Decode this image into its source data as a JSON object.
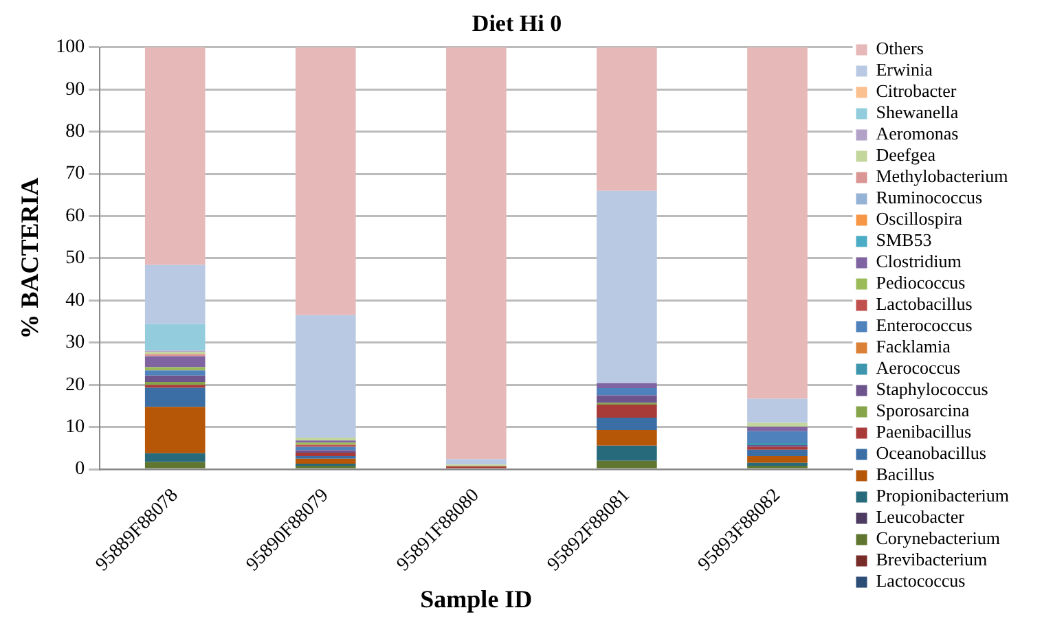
{
  "chart_data": {
    "type": "bar",
    "title": "Diet Hi 0",
    "xlabel": "Sample ID",
    "ylabel": "% BACTERIA",
    "categories": [
      "95889F88078",
      "95890F88079",
      "95891F88080",
      "95892F88081",
      "95893F88082"
    ],
    "stacked": true,
    "ylim": [
      0,
      100
    ],
    "yticks": [
      0,
      10,
      20,
      30,
      40,
      50,
      60,
      70,
      80,
      90,
      100
    ],
    "grid": "y",
    "legend": "right",
    "series": [
      {
        "name": "Lactococcus",
        "color": "#2c4d75",
        "values": [
          0,
          0,
          0,
          0,
          0
        ]
      },
      {
        "name": "Brevibacterium",
        "color": "#772c2a",
        "values": [
          0,
          0,
          0.3,
          0,
          0
        ]
      },
      {
        "name": "Corynebacterium",
        "color": "#5f7530",
        "values": [
          1.7,
          0.8,
          0,
          2,
          0.8
        ]
      },
      {
        "name": "Leucobacter",
        "color": "#4d3b62",
        "values": [
          0,
          0,
          0,
          0,
          0
        ]
      },
      {
        "name": "Propionibacterium",
        "color": "#276a7c",
        "values": [
          2.1,
          0.5,
          0,
          3.6,
          0.7
        ]
      },
      {
        "name": "Bacillus",
        "color": "#b65708",
        "values": [
          11,
          1.2,
          0,
          3.7,
          1.6
        ]
      },
      {
        "name": "Oceanobacillus",
        "color": "#3a6ea5",
        "values": [
          4.5,
          0.6,
          0,
          2.9,
          1.5
        ]
      },
      {
        "name": "Paenibacillus",
        "color": "#a83a37",
        "values": [
          0.7,
          0.8,
          0.4,
          3.1,
          0.7
        ]
      },
      {
        "name": "Sporosarcina",
        "color": "#86a44a",
        "values": [
          0.7,
          0,
          0,
          0.4,
          0
        ]
      },
      {
        "name": "Staphylococcus",
        "color": "#6e548d",
        "values": [
          1.5,
          0.6,
          0,
          1.8,
          0.4
        ]
      },
      {
        "name": "Aerococcus",
        "color": "#3d96ae",
        "values": [
          0,
          0,
          0,
          0,
          0.5
        ]
      },
      {
        "name": "Facklamia",
        "color": "#da8137",
        "values": [
          0,
          0,
          0,
          0,
          0
        ]
      },
      {
        "name": "Enterococcus",
        "color": "#4f81bd",
        "values": [
          1.2,
          0.8,
          0,
          1.7,
          2.8
        ]
      },
      {
        "name": "Lactobacillus",
        "color": "#c0504d",
        "values": [
          0,
          0.5,
          0,
          0,
          0
        ]
      },
      {
        "name": "Pediococcus",
        "color": "#9bbb59",
        "values": [
          0.8,
          0.5,
          0,
          0,
          0
        ]
      },
      {
        "name": "Clostridium",
        "color": "#8064a2",
        "values": [
          2.6,
          0.5,
          0,
          1.2,
          1.1
        ]
      },
      {
        "name": "SMB53",
        "color": "#4bacc6",
        "values": [
          0,
          0,
          0,
          0,
          0
        ]
      },
      {
        "name": "Oscillospira",
        "color": "#f79646",
        "values": [
          0,
          0,
          0,
          0,
          0
        ]
      },
      {
        "name": "Ruminococcus",
        "color": "#95b3d7",
        "values": [
          0,
          0,
          0,
          0,
          0
        ]
      },
      {
        "name": "Methylobacterium",
        "color": "#d99694",
        "values": [
          0.5,
          0,
          0,
          0,
          0
        ]
      },
      {
        "name": "Deefgea",
        "color": "#c3d69b",
        "values": [
          0.5,
          0.7,
          0.4,
          0,
          0.9
        ]
      },
      {
        "name": "Aeromonas",
        "color": "#b3a2c7",
        "values": [
          0.3,
          0,
          0,
          0,
          0
        ]
      },
      {
        "name": "Shewanella",
        "color": "#93cddd",
        "values": [
          6.3,
          0,
          0,
          0,
          0
        ]
      },
      {
        "name": "Citrobacter",
        "color": "#fac090",
        "values": [
          0,
          0,
          0,
          0,
          0
        ]
      },
      {
        "name": "Erwinia",
        "color": "#b9c9e3",
        "values": [
          14,
          29,
          1.3,
          45.6,
          5.7
        ]
      },
      {
        "name": "Others",
        "color": "#e6b9b8",
        "values": [
          51.6,
          63.5,
          97.6,
          34,
          83.3
        ]
      }
    ]
  }
}
